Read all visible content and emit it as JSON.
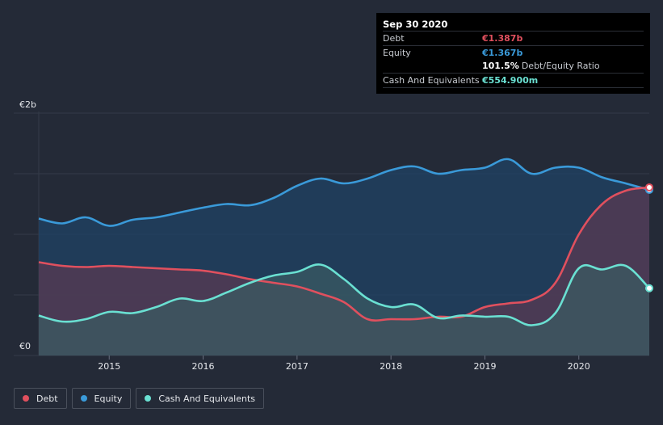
{
  "chart_data": {
    "type": "area",
    "title": "",
    "ylabel_top": "€2b",
    "ylabel_bottom": "€0",
    "ylim": [
      0,
      2.0
    ],
    "xlim": [
      2014.25,
      2020.75
    ],
    "x_ticks": [
      {
        "value": 2015,
        "label": "2015"
      },
      {
        "value": 2016,
        "label": "2016"
      },
      {
        "value": 2017,
        "label": "2017"
      },
      {
        "value": 2018,
        "label": "2018"
      },
      {
        "value": 2019,
        "label": "2019"
      },
      {
        "value": 2020,
        "label": "2020"
      }
    ],
    "series": [
      {
        "name": "Equity",
        "color": "#3a9ad9",
        "fill": "#1f4466",
        "x": [
          2014.25,
          2014.5,
          2014.75,
          2015.0,
          2015.25,
          2015.5,
          2015.75,
          2016.0,
          2016.25,
          2016.5,
          2016.75,
          2017.0,
          2017.25,
          2017.5,
          2017.75,
          2018.0,
          2018.25,
          2018.5,
          2018.75,
          2019.0,
          2019.25,
          2019.5,
          2019.75,
          2020.0,
          2020.25,
          2020.5,
          2020.75
        ],
        "values": [
          1.13,
          1.09,
          1.14,
          1.07,
          1.12,
          1.14,
          1.18,
          1.22,
          1.25,
          1.24,
          1.3,
          1.4,
          1.46,
          1.42,
          1.46,
          1.53,
          1.56,
          1.5,
          1.53,
          1.55,
          1.62,
          1.5,
          1.55,
          1.55,
          1.47,
          1.42,
          1.367
        ]
      },
      {
        "name": "Debt",
        "color": "#e0505e",
        "fill": "#5a3a52",
        "x": [
          2014.25,
          2014.5,
          2014.75,
          2015.0,
          2015.25,
          2015.5,
          2015.75,
          2016.0,
          2016.25,
          2016.5,
          2016.75,
          2017.0,
          2017.25,
          2017.5,
          2017.75,
          2018.0,
          2018.25,
          2018.5,
          2018.75,
          2019.0,
          2019.25,
          2019.5,
          2019.75,
          2020.0,
          2020.25,
          2020.5,
          2020.75
        ],
        "values": [
          0.77,
          0.74,
          0.73,
          0.74,
          0.73,
          0.72,
          0.71,
          0.7,
          0.67,
          0.63,
          0.6,
          0.57,
          0.51,
          0.44,
          0.3,
          0.3,
          0.3,
          0.32,
          0.32,
          0.4,
          0.43,
          0.46,
          0.6,
          1.0,
          1.25,
          1.36,
          1.387
        ]
      },
      {
        "name": "Cash And Equivalents",
        "color": "#6ae0d2",
        "fill": "#3a5c62",
        "x": [
          2014.25,
          2014.5,
          2014.75,
          2015.0,
          2015.25,
          2015.5,
          2015.75,
          2016.0,
          2016.25,
          2016.5,
          2016.75,
          2017.0,
          2017.25,
          2017.5,
          2017.75,
          2018.0,
          2018.25,
          2018.5,
          2018.75,
          2019.0,
          2019.25,
          2019.5,
          2019.75,
          2020.0,
          2020.25,
          2020.5,
          2020.75
        ],
        "values": [
          0.33,
          0.28,
          0.3,
          0.36,
          0.35,
          0.4,
          0.47,
          0.45,
          0.52,
          0.6,
          0.66,
          0.69,
          0.75,
          0.63,
          0.47,
          0.4,
          0.42,
          0.31,
          0.33,
          0.32,
          0.32,
          0.25,
          0.35,
          0.72,
          0.71,
          0.74,
          0.5549
        ]
      }
    ]
  },
  "tooltip": {
    "date": "Sep 30 2020",
    "debt_label": "Debt",
    "debt_value": "€1.387b",
    "equity_label": "Equity",
    "equity_value": "€1.367b",
    "ratio_value": "101.5%",
    "ratio_label": "Debt/Equity Ratio",
    "cash_label": "Cash And Equivalents",
    "cash_value": "€554.900m"
  },
  "legend": {
    "debt": "Debt",
    "equity": "Equity",
    "cash": "Cash And Equivalents"
  },
  "colors": {
    "background": "#242a37",
    "debt": "#e0505e",
    "equity": "#3a9ad9",
    "cash": "#6ae0d2"
  }
}
